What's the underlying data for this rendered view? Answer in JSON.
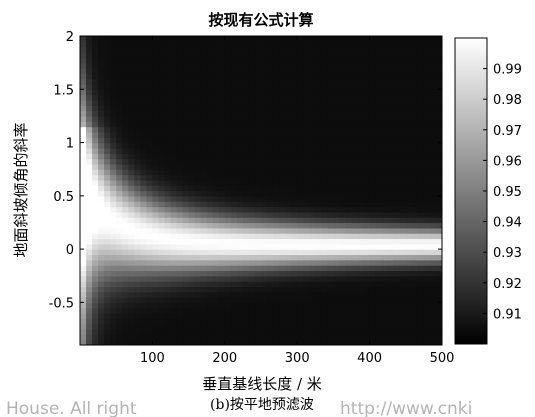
{
  "chart_data": {
    "type": "heatmap",
    "title": "按现有公式计算",
    "xlabel": "垂直基线长度 / 米",
    "ylabel": "地面斜坡倾角的斜率",
    "xlim": [
      0,
      500
    ],
    "ylim": [
      -0.9,
      2
    ],
    "x_ticks": [
      "100",
      "200",
      "300",
      "400",
      "500"
    ],
    "x_tick_values": [
      100,
      200,
      300,
      400,
      500
    ],
    "y_ticks": [
      "2",
      "1.5",
      "1",
      "0.5",
      "0",
      "-0.5"
    ],
    "y_tick_values": [
      2,
      1.5,
      1,
      0.5,
      0,
      -0.5
    ],
    "colorbar": {
      "range": [
        0.9,
        1.0
      ],
      "ticks": [
        "0.99",
        "0.98",
        "0.97",
        "0.96",
        "0.95",
        "0.94",
        "0.93",
        "0.92",
        "0.91"
      ],
      "tick_values": [
        0.99,
        0.98,
        0.97,
        0.96,
        0.95,
        0.94,
        0.93,
        0.92,
        0.91
      ],
      "colormap": "gray"
    },
    "grid": false
  },
  "caption": "(b)按平地预滤波",
  "watermark": {
    "left": "House. All right",
    "right": "http://www.cnki"
  }
}
